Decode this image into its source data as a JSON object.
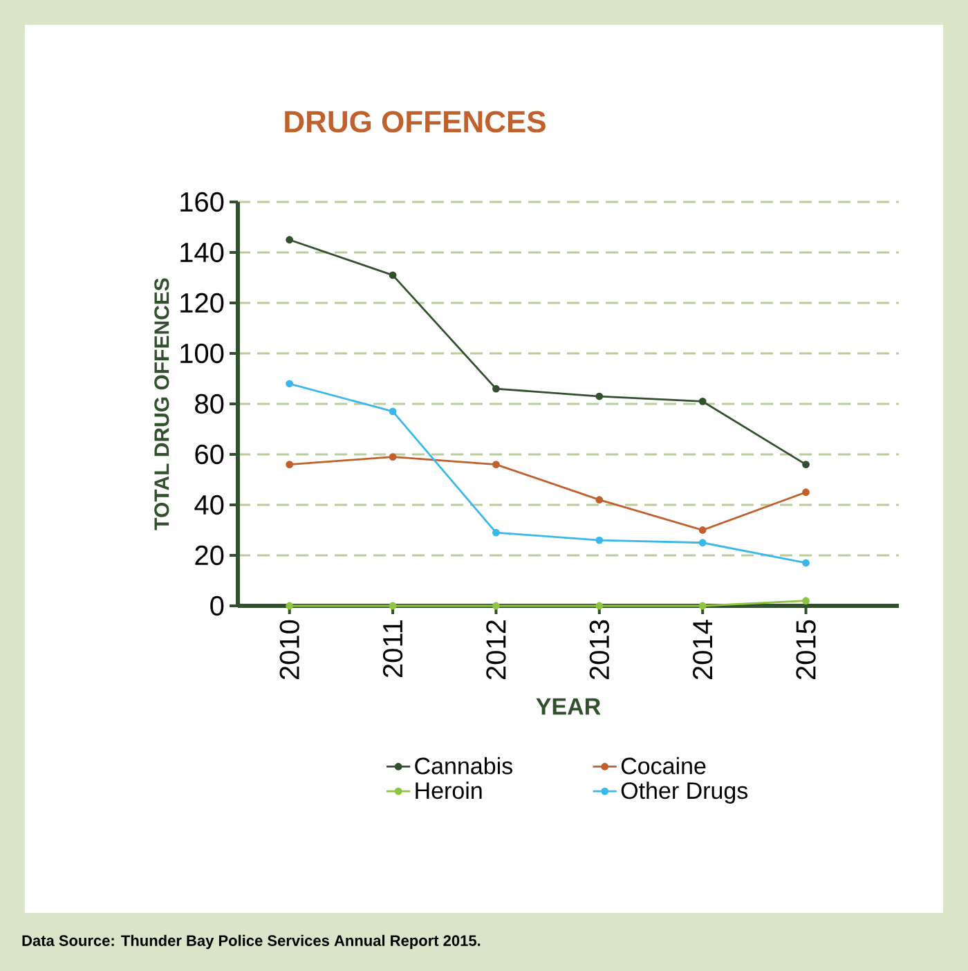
{
  "chart_data": {
    "type": "line",
    "title": "DRUG OFFENCES",
    "xlabel": "YEAR",
    "ylabel": "TOTAL DRUG OFFENCES",
    "categories": [
      "2010",
      "2011",
      "2012",
      "2013",
      "2014",
      "2015"
    ],
    "series": [
      {
        "name": "Cannabis",
        "color": "#33502e",
        "values": [
          145,
          131,
          86,
          83,
          81,
          56
        ]
      },
      {
        "name": "Cocaine",
        "color": "#c0602c",
        "values": [
          56,
          59,
          56,
          42,
          30,
          45
        ]
      },
      {
        "name": "Heroin",
        "color": "#8cc63f",
        "values": [
          0,
          0,
          0,
          0,
          0,
          2
        ]
      },
      {
        "name": "Other Drugs",
        "color": "#3bb8ea",
        "values": [
          88,
          77,
          29,
          26,
          25,
          17
        ]
      }
    ],
    "ylim": [
      0,
      160
    ],
    "yticks": [
      0,
      20,
      40,
      60,
      80,
      100,
      120,
      140,
      160
    ],
    "grid": "y",
    "legend": "bottom",
    "marker": "circle",
    "line_style": "solid",
    "annotations": [
      "Data Source: Thunder Bay Police Services Annual Report 2015."
    ]
  }
}
